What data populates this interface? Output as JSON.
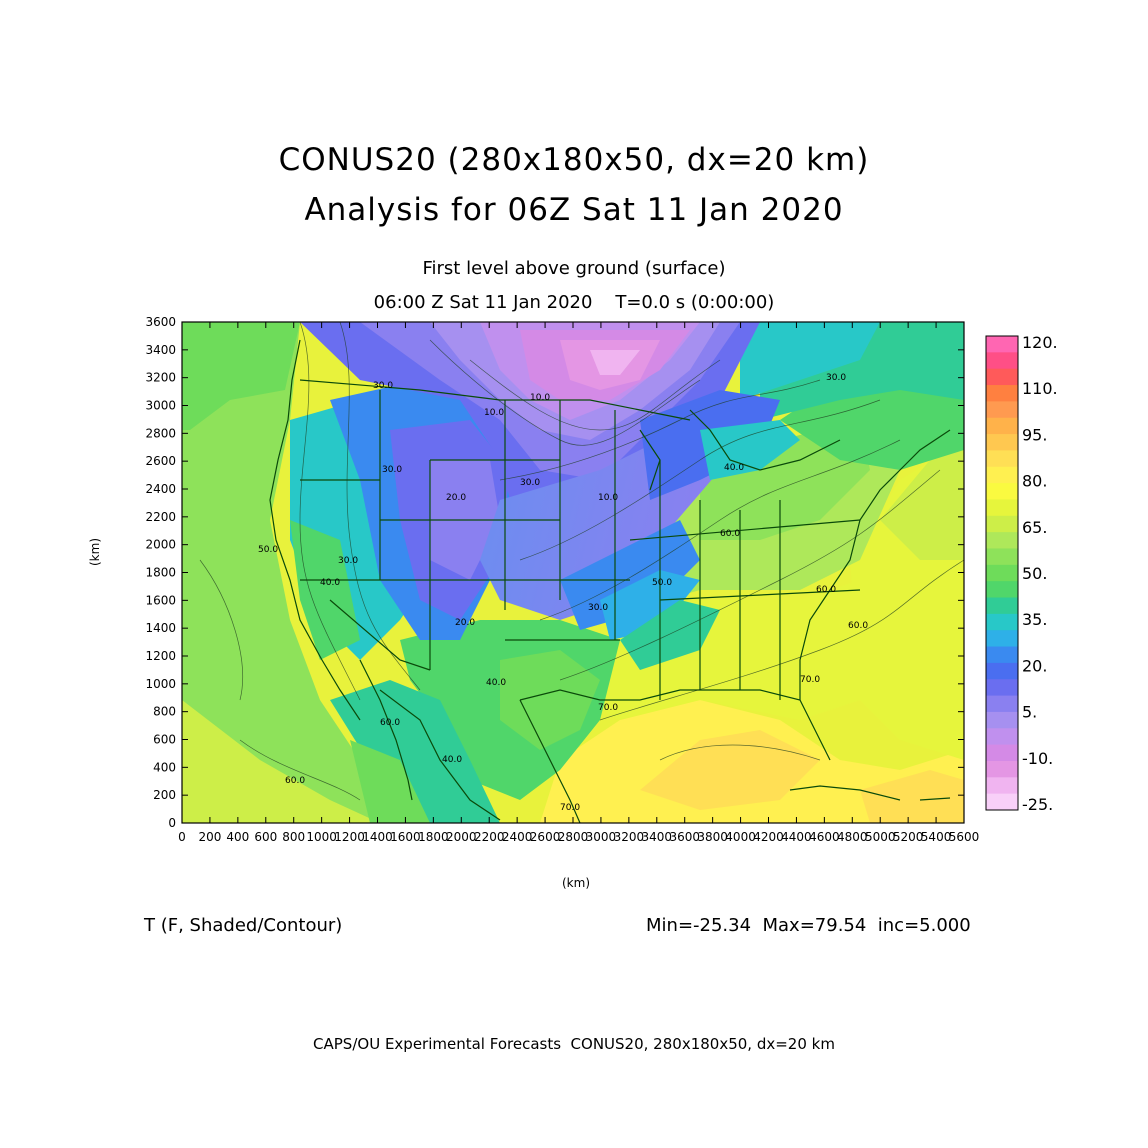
{
  "title_line1": "CONUS20 (280x180x50, dx=20 km)",
  "title_line2": "Analysis for 06Z Sat 11 Jan 2020",
  "subtitle_line1": "First level above ground (surface)",
  "subtitle_line2": "06:00 Z Sat 11 Jan 2020    T=0.0 s (0:00:00)",
  "axes": {
    "x_label": "(km)",
    "y_label": "(km)",
    "x_ticks": [
      "0",
      "200",
      "400",
      "600",
      "800",
      "1000",
      "1200",
      "1400",
      "1600",
      "1800",
      "2000",
      "2200",
      "2400",
      "2600",
      "2800",
      "3000",
      "3200",
      "3400",
      "3600",
      "3800",
      "4000",
      "4200",
      "4400",
      "4600",
      "4800",
      "5000",
      "5200",
      "5400",
      "5600"
    ],
    "y_ticks": [
      "0",
      "200",
      "400",
      "600",
      "800",
      "1000",
      "1200",
      "1400",
      "1600",
      "1800",
      "2000",
      "2200",
      "2400",
      "2600",
      "2800",
      "3000",
      "3200",
      "3400",
      "3600"
    ],
    "x_range": [
      0,
      5600
    ],
    "y_range": [
      0,
      3600
    ]
  },
  "colorbar": {
    "labels": [
      "120.",
      "110.",
      "95.",
      "80.",
      "65.",
      "50.",
      "35.",
      "20.",
      "5.",
      "-10.",
      "-25."
    ],
    "colors": [
      "#ff66b2",
      "#ff4f86",
      "#ff5a5a",
      "#ff8040",
      "#ff9a50",
      "#ffb24a",
      "#ffc850",
      "#ffdf55",
      "#fff050",
      "#fafa40",
      "#e6f53c",
      "#cdee48",
      "#aee85a",
      "#8ee25a",
      "#6edc5a",
      "#50d66a",
      "#30cc96",
      "#28c8c8",
      "#2eb0e8",
      "#3a8af0",
      "#4a6ef0",
      "#6a6ef0",
      "#8a80f0",
      "#a690f0",
      "#c090ee",
      "#d48ae6",
      "#e496e4",
      "#f0b4f0",
      "#f8d0f8"
    ]
  },
  "contour_labels": [
    "30.0",
    "10.0",
    "10.0",
    "20.0",
    "30.0",
    "30.0",
    "40.0",
    "50.0",
    "60.0",
    "60.0",
    "40.0",
    "40.0",
    "30.0",
    "20.0",
    "30.0",
    "40.0",
    "50.0",
    "60.0",
    "70.0",
    "70.0",
    "60.0",
    "60.0",
    "70.0",
    "30.0",
    "10.0"
  ],
  "variable_label": "T (F, Shaded/Contour)",
  "stats": "Min=-25.34  Max=79.54  inc=5.000",
  "footer": "CAPS/OU Experimental Forecasts  CONUS20, 280x180x50, dx=20 km"
}
